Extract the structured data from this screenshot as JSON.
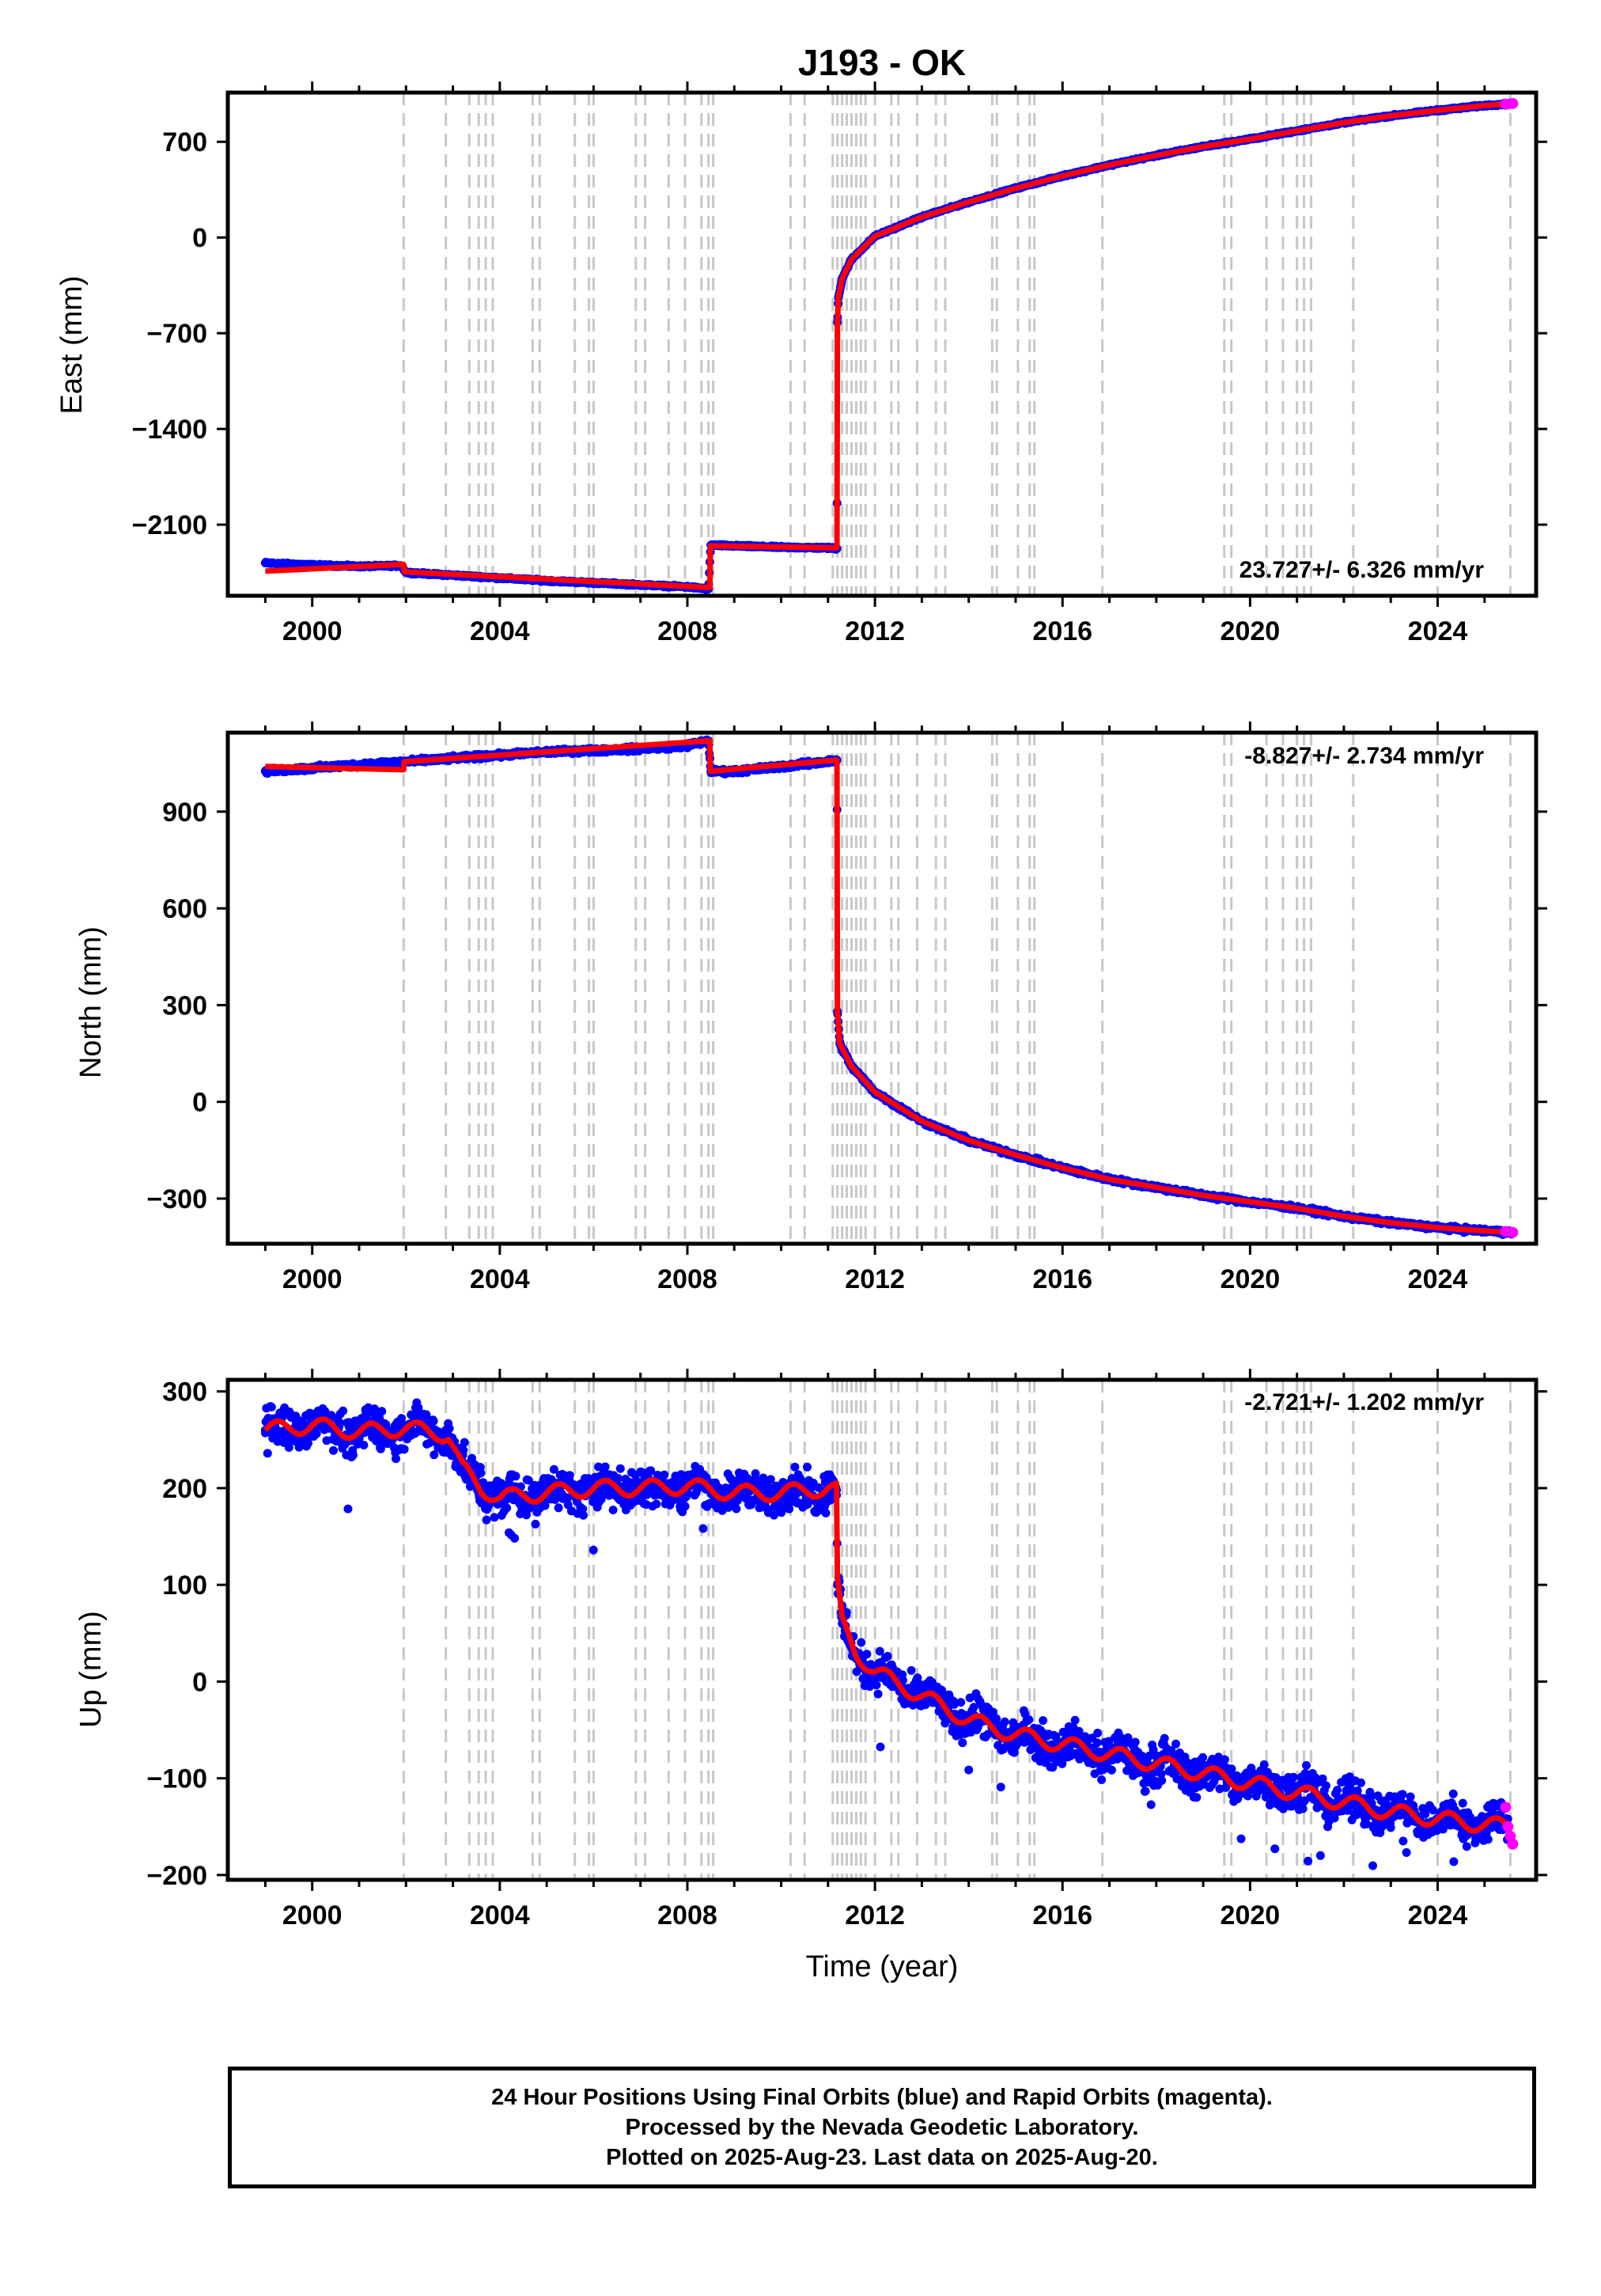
{
  "chart_data": [
    {
      "type": "scatter",
      "title": "J193 - OK",
      "ylabel": "East (mm)",
      "xlabel": "",
      "xlim": [
        1998.2,
        2026.1
      ],
      "ylim": [
        -2620,
        1060
      ],
      "yticks": [
        -2100,
        -1400,
        -700,
        0,
        700
      ],
      "xticks": [
        2000,
        2004,
        2008,
        2012,
        2016,
        2020,
        2024
      ],
      "rate_label": "23.727+/- 6.326 mm/yr",
      "series": [
        {
          "color": "#0000ff",
          "x": [
            1999.0,
            2000.0,
            2001.0,
            2001.9,
            2002.0,
            2003.0,
            2004.0,
            2005.0,
            2006.0,
            2007.0,
            2008.0,
            2008.45,
            2008.5,
            2009.0,
            2010.0,
            2011.0,
            2011.19,
            2011.2,
            2011.22,
            2011.3,
            2011.5,
            2012.0,
            2013.0,
            2014.0,
            2015.0,
            2016.0,
            2017.0,
            2018.0,
            2019.0,
            2020.0,
            2021.0,
            2022.0,
            2023.0,
            2024.0,
            2025.0,
            2025.6
          ],
          "y": [
            -2380,
            -2395,
            -2405,
            -2400,
            -2450,
            -2470,
            -2490,
            -2510,
            -2525,
            -2540,
            -2555,
            -2570,
            -2250,
            -2255,
            -2265,
            -2270,
            -2275,
            -620,
            -440,
            -300,
            -160,
            10,
            150,
            260,
            360,
            450,
            530,
            600,
            665,
            720,
            780,
            840,
            890,
            930,
            965,
            980
          ]
        }
      ],
      "fit": {
        "color": "#ff0000",
        "x": [
          1999.0,
          2001.95,
          2001.96,
          2008.48,
          2008.49,
          2011.19,
          2011.2,
          2011.22,
          2011.3,
          2011.5,
          2012.0,
          2013.0,
          2014.0,
          2015.0,
          2016.0,
          2017.0,
          2018.0,
          2019.0,
          2020.0,
          2021.0,
          2022.0,
          2023.0,
          2024.0,
          2025.0,
          2025.6
        ],
        "y": [
          -2440,
          -2390,
          -2445,
          -2560,
          -2255,
          -2270,
          -620,
          -440,
          -300,
          -160,
          10,
          150,
          260,
          360,
          450,
          530,
          600,
          665,
          720,
          780,
          840,
          890,
          930,
          965,
          980
        ]
      },
      "rapid": {
        "color": "#ff00ff",
        "x": [
          2025.45,
          2025.6
        ],
        "y": [
          975,
          980
        ]
      }
    },
    {
      "type": "scatter",
      "title": "",
      "ylabel": "North (mm)",
      "xlabel": "",
      "xlim": [
        1998.2,
        2026.1
      ],
      "ylim": [
        -440,
        1145
      ],
      "yticks": [
        -300,
        0,
        300,
        600,
        900
      ],
      "xticks": [
        2000,
        2004,
        2008,
        2012,
        2016,
        2020,
        2024
      ],
      "rate_label": "-8.827+/- 2.734 mm/yr",
      "series": [
        {
          "color": "#0000ff",
          "x": [
            1999.0,
            2000.0,
            2001.0,
            2002.0,
            2003.0,
            2004.0,
            2005.0,
            2006.0,
            2007.0,
            2008.0,
            2008.45,
            2008.5,
            2009.0,
            2010.0,
            2011.0,
            2011.19,
            2011.2,
            2011.25,
            2011.5,
            2012.0,
            2013.0,
            2014.0,
            2015.0,
            2016.0,
            2017.0,
            2018.0,
            2019.0,
            2020.0,
            2021.0,
            2022.0,
            2023.0,
            2024.0,
            2025.0,
            2025.6
          ],
          "y": [
            1025,
            1035,
            1045,
            1055,
            1065,
            1075,
            1085,
            1090,
            1095,
            1105,
            1120,
            1025,
            1025,
            1040,
            1055,
            1060,
            280,
            180,
            110,
            30,
            -60,
            -120,
            -165,
            -205,
            -240,
            -265,
            -290,
            -310,
            -330,
            -355,
            -375,
            -390,
            -400,
            -405
          ]
        }
      ],
      "fit": {
        "color": "#ff0000",
        "x": [
          1999.0,
          2001.95,
          2001.96,
          2008.48,
          2008.49,
          2011.19,
          2011.2,
          2011.25,
          2011.5,
          2012.0,
          2013.0,
          2014.0,
          2015.0,
          2016.0,
          2017.0,
          2018.0,
          2019.0,
          2020.0,
          2021.0,
          2022.0,
          2023.0,
          2024.0,
          2025.0,
          2025.6
        ],
        "y": [
          1040,
          1030,
          1055,
          1120,
          1025,
          1060,
          280,
          180,
          110,
          30,
          -60,
          -120,
          -165,
          -205,
          -240,
          -265,
          -290,
          -310,
          -330,
          -355,
          -375,
          -390,
          -400,
          -405
        ]
      },
      "rapid": {
        "color": "#ff00ff",
        "x": [
          2025.45,
          2025.6
        ],
        "y": [
          -402,
          -405
        ]
      }
    },
    {
      "type": "scatter",
      "title": "",
      "ylabel": "Up (mm)",
      "xlabel": "Time (year)",
      "xlim": [
        1998.2,
        2026.1
      ],
      "ylim": [
        -205,
        312
      ],
      "yticks": [
        -200,
        -100,
        0,
        100,
        200,
        300
      ],
      "xticks": [
        2000,
        2004,
        2008,
        2012,
        2016,
        2020,
        2024
      ],
      "rate_label": "-2.721+/- 1.202 mm/yr",
      "series": [
        {
          "color": "#0000ff",
          "x": [
            1999.0,
            2000.0,
            2001.0,
            2002.0,
            2002.9,
            2003.2,
            2003.6,
            2004.0,
            2005.0,
            2006.0,
            2007.0,
            2008.0,
            2009.0,
            2010.0,
            2011.0,
            2011.18,
            2011.2,
            2011.3,
            2011.6,
            2012.0,
            2013.0,
            2014.0,
            2015.0,
            2016.0,
            2017.0,
            2018.0,
            2019.0,
            2020.0,
            2021.0,
            2022.0,
            2023.0,
            2024.0,
            2025.0,
            2025.5
          ],
          "y": [
            260,
            265,
            258,
            262,
            255,
            220,
            200,
            190,
            195,
            200,
            200,
            202,
            195,
            195,
            200,
            198,
            100,
            60,
            30,
            10,
            -15,
            -40,
            -55,
            -65,
            -75,
            -85,
            -95,
            -105,
            -115,
            -125,
            -135,
            -142,
            -148,
            -150
          ]
        }
      ],
      "fit": {
        "color": "#ff0000",
        "x": [
          1999.0,
          2000.0,
          2001.0,
          2002.0,
          2002.9,
          2003.2,
          2003.6,
          2004.0,
          2005.0,
          2006.0,
          2007.0,
          2008.0,
          2009.0,
          2010.0,
          2011.0,
          2011.18,
          2011.2,
          2011.3,
          2011.6,
          2012.0,
          2013.0,
          2014.0,
          2015.0,
          2016.0,
          2017.0,
          2018.0,
          2019.0,
          2020.0,
          2021.0,
          2022.0,
          2023.0,
          2024.0,
          2025.0,
          2025.5
        ],
        "y": [
          260,
          265,
          258,
          262,
          255,
          220,
          200,
          190,
          195,
          200,
          200,
          202,
          195,
          195,
          200,
          198,
          100,
          60,
          30,
          10,
          -15,
          -40,
          -55,
          -65,
          -75,
          -85,
          -95,
          -105,
          -115,
          -125,
          -135,
          -142,
          -148,
          -150
        ]
      },
      "rapid": {
        "color": "#ff00ff",
        "x": [
          2025.45,
          2025.5,
          2025.55,
          2025.6
        ],
        "y": [
          -130,
          -150,
          -160,
          -168
        ]
      }
    }
  ],
  "event_lines": [
    2001.95,
    2002.85,
    2003.35,
    2003.55,
    2003.7,
    2003.85,
    2004.7,
    2004.85,
    2005.6,
    2005.9,
    2006.0,
    2006.9,
    2007.1,
    2007.6,
    2007.95,
    2008.3,
    2008.45,
    2008.55,
    2010.2,
    2010.5,
    2011.1,
    2011.2,
    2011.3,
    2011.4,
    2011.5,
    2011.6,
    2011.7,
    2011.8,
    2012.0,
    2012.35,
    2012.5,
    2012.9,
    2013.3,
    2013.5,
    2014.5,
    2014.6,
    2015.05,
    2015.3,
    2015.4,
    2016.85,
    2019.45,
    2019.6,
    2020.35,
    2020.7,
    2021.0,
    2021.15,
    2021.3,
    2022.2,
    2024.0,
    2025.55
  ],
  "event_line_color": "#c8c8c8",
  "footer": {
    "line1": "24 Hour Positions Using Final Orbits (blue) and Rapid Orbits (magenta).",
    "line2": "Processed by the Nevada Geodetic Laboratory.",
    "line3": "Plotted on 2025-Aug-23. Last data on 2025-Aug-20."
  }
}
